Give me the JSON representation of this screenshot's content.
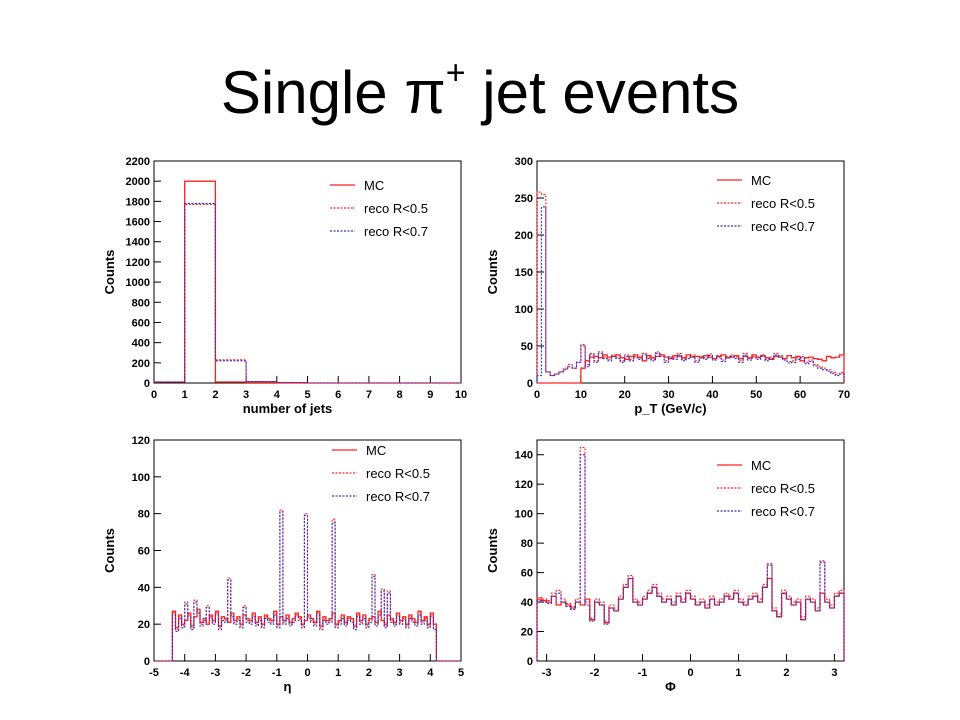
{
  "title": {
    "main": "Single π",
    "superscript": "+",
    "suffix": " jet events"
  },
  "colors": {
    "mc": "#ff2020",
    "r05": "#ff2020",
    "r07": "#3030c8"
  },
  "chart_data": [
    {
      "type": "step",
      "xlabel": "number of jets",
      "ylabel": "Counts",
      "xlim": [
        0,
        10
      ],
      "ylim": [
        0,
        2200
      ],
      "xticks": [
        0,
        1,
        2,
        3,
        4,
        5,
        6,
        7,
        8,
        9,
        10
      ],
      "yticks": [
        0,
        200,
        400,
        600,
        800,
        1000,
        1200,
        1400,
        1600,
        1800,
        2000,
        2200
      ],
      "legend": [
        "MC",
        "reco R<0.5",
        "reco R<0.7"
      ],
      "bin_edges": [
        0,
        1,
        2,
        3,
        4,
        5,
        6,
        7,
        8,
        9,
        10
      ],
      "series": [
        {
          "name": "MC",
          "style": "solid",
          "values": [
            10,
            2000,
            10,
            5,
            0,
            0,
            0,
            0,
            0,
            0
          ]
        },
        {
          "name": "reco R<0.5",
          "style": "dotted",
          "values": [
            10,
            1770,
            230,
            15,
            5,
            0,
            0,
            0,
            0,
            0
          ]
        },
        {
          "name": "reco R<0.7",
          "style": "dotted",
          "values": [
            10,
            1780,
            220,
            15,
            5,
            0,
            0,
            0,
            0,
            0
          ]
        }
      ]
    },
    {
      "type": "step",
      "xlabel": "p_T (GeV/c)",
      "ylabel": "Counts",
      "xlim": [
        0,
        70
      ],
      "ylim": [
        0,
        300
      ],
      "xticks": [
        0,
        10,
        20,
        30,
        40,
        50,
        60,
        70
      ],
      "yticks": [
        0,
        50,
        100,
        150,
        200,
        250,
        300
      ],
      "legend": [
        "MC",
        "reco R<0.5",
        "reco R<0.7"
      ],
      "bin_width": 1,
      "series": [
        {
          "name": "MC",
          "style": "solid",
          "values": [
            0,
            0,
            0,
            0,
            0,
            0,
            0,
            0,
            0,
            0,
            20,
            30,
            35,
            36,
            34,
            38,
            35,
            36,
            38,
            34,
            32,
            36,
            38,
            35,
            30,
            37,
            34,
            36,
            38,
            35,
            33,
            37,
            36,
            34,
            38,
            35,
            36,
            34,
            37,
            35,
            33,
            36,
            38,
            34,
            35,
            37,
            33,
            36,
            34,
            38,
            35,
            37,
            34,
            32,
            36,
            35,
            33,
            37,
            34,
            36,
            30,
            34,
            35,
            33,
            32,
            30,
            36,
            34,
            35,
            38
          ]
        },
        {
          "name": "reco R<0.5",
          "style": "dotted",
          "values": [
            258,
            255,
            15,
            10,
            12,
            15,
            20,
            25,
            20,
            28,
            52,
            25,
            40,
            30,
            42,
            35,
            32,
            38,
            35,
            30,
            38,
            32,
            36,
            34,
            40,
            35,
            32,
            42,
            38,
            30,
            36,
            34,
            40,
            32,
            35,
            38,
            30,
            36,
            34,
            39,
            33,
            37,
            31,
            36,
            38,
            35,
            30,
            40,
            33,
            36,
            34,
            38,
            32,
            35,
            40,
            37,
            33,
            29,
            30,
            34,
            36,
            28,
            31,
            25,
            22,
            20,
            18,
            15,
            12,
            14
          ]
        },
        {
          "name": "reco R<0.7",
          "style": "dotted",
          "values": [
            10,
            238,
            15,
            10,
            12,
            15,
            18,
            22,
            20,
            28,
            50,
            22,
            38,
            28,
            40,
            33,
            30,
            36,
            33,
            28,
            36,
            30,
            34,
            32,
            38,
            33,
            30,
            40,
            36,
            28,
            34,
            32,
            38,
            30,
            33,
            36,
            28,
            34,
            32,
            37,
            31,
            35,
            29,
            34,
            36,
            33,
            28,
            38,
            31,
            34,
            32,
            36,
            30,
            33,
            38,
            35,
            31,
            27,
            28,
            32,
            34,
            26,
            29,
            23,
            20,
            18,
            16,
            13,
            10,
            12
          ]
        }
      ]
    },
    {
      "type": "step",
      "xlabel": "η",
      "ylabel": "Counts",
      "xlim": [
        -5,
        5
      ],
      "ylim": [
        0,
        120
      ],
      "xticks": [
        -5,
        -4,
        -3,
        -2,
        -1,
        0,
        1,
        2,
        3,
        4,
        5
      ],
      "yticks": [
        0,
        20,
        40,
        60,
        80,
        100,
        120
      ],
      "legend": [
        "MC",
        "reco R<0.5",
        "reco R<0.7"
      ],
      "bin_width": 0.1,
      "series": [
        {
          "name": "MC",
          "style": "solid",
          "values": [
            0,
            0,
            0,
            0,
            0,
            0,
            27,
            18,
            25,
            20,
            22,
            26,
            19,
            24,
            28,
            21,
            23,
            20,
            25,
            22,
            27,
            19,
            24,
            23,
            21,
            26,
            22,
            24,
            20,
            25,
            23,
            22,
            26,
            21,
            24,
            20,
            25,
            23,
            22,
            27,
            20,
            24,
            22,
            25,
            21,
            23,
            26,
            24,
            20,
            22,
            25,
            23,
            21,
            27,
            19,
            24,
            22,
            23,
            26,
            20,
            22,
            25,
            21,
            24,
            23,
            19,
            26,
            22,
            25,
            20,
            23,
            24,
            21,
            27,
            22,
            20,
            25,
            23,
            21,
            26,
            22,
            24,
            20,
            25,
            23,
            21,
            27,
            22,
            24,
            20,
            26,
            20,
            0,
            0,
            0,
            0,
            0,
            0,
            0,
            0
          ]
        },
        {
          "name": "reco R<0.5",
          "style": "dotted",
          "values": [
            0,
            0,
            0,
            0,
            0,
            0,
            26,
            17,
            24,
            19,
            32,
            25,
            18,
            33,
            27,
            20,
            22,
            30,
            24,
            21,
            26,
            18,
            23,
            22,
            45,
            25,
            21,
            23,
            19,
            30,
            22,
            21,
            25,
            20,
            23,
            19,
            24,
            22,
            21,
            26,
            19,
            82,
            21,
            24,
            20,
            22,
            25,
            23,
            19,
            80,
            24,
            22,
            20,
            26,
            18,
            23,
            21,
            22,
            77,
            19,
            21,
            24,
            20,
            23,
            22,
            18,
            25,
            21,
            24,
            19,
            22,
            47,
            20,
            26,
            39,
            19,
            38,
            22,
            20,
            25,
            21,
            23,
            19,
            24,
            22,
            20,
            26,
            21,
            23,
            19,
            25,
            18,
            0,
            0,
            0,
            0,
            0,
            0,
            0,
            0
          ]
        },
        {
          "name": "reco R<0.7",
          "style": "dotted",
          "values": [
            0,
            0,
            0,
            0,
            0,
            0,
            25,
            16,
            23,
            18,
            31,
            24,
            17,
            32,
            26,
            19,
            21,
            29,
            23,
            20,
            25,
            17,
            22,
            21,
            44,
            24,
            20,
            22,
            18,
            29,
            21,
            20,
            24,
            19,
            22,
            18,
            23,
            21,
            20,
            25,
            18,
            81,
            20,
            23,
            19,
            21,
            24,
            22,
            18,
            79,
            23,
            21,
            19,
            25,
            17,
            22,
            20,
            21,
            75,
            18,
            20,
            23,
            19,
            22,
            21,
            17,
            24,
            20,
            23,
            18,
            21,
            46,
            19,
            25,
            38,
            18,
            37,
            21,
            19,
            24,
            20,
            22,
            18,
            23,
            21,
            19,
            25,
            20,
            22,
            18,
            24,
            17,
            0,
            0,
            0,
            0,
            0,
            0,
            0,
            0
          ]
        }
      ]
    },
    {
      "type": "step",
      "xlabel": "Φ",
      "ylabel": "Counts",
      "xlim": [
        -3.2,
        3.2
      ],
      "ylim": [
        0,
        150
      ],
      "xticks": [
        -3,
        -2,
        -1,
        0,
        1,
        2,
        3
      ],
      "yticks": [
        0,
        20,
        40,
        60,
        80,
        100,
        120,
        140
      ],
      "legend": [
        "MC",
        "reco R<0.5",
        "reco R<0.7"
      ],
      "bin_width": 0.1,
      "series": [
        {
          "name": "MC",
          "style": "solid",
          "values": [
            42,
            41,
            40,
            44,
            38,
            40,
            38,
            36,
            40,
            38,
            42,
            28,
            40,
            38,
            26,
            36,
            34,
            42,
            50,
            56,
            40,
            38,
            42,
            46,
            50,
            44,
            40,
            42,
            38,
            44,
            40,
            46,
            42,
            38,
            40,
            36,
            42,
            38,
            40,
            44,
            42,
            46,
            40,
            38,
            42,
            44,
            40,
            50,
            56,
            34,
            30,
            46,
            42,
            38,
            40,
            28,
            42,
            40,
            34,
            46,
            40,
            36,
            44,
            46
          ]
        },
        {
          "name": "reco R<0.5",
          "style": "dotted",
          "values": [
            43,
            42,
            41,
            46,
            48,
            42,
            39,
            37,
            42,
            145,
            40,
            29,
            42,
            40,
            27,
            38,
            36,
            44,
            52,
            58,
            42,
            40,
            44,
            48,
            52,
            46,
            42,
            44,
            40,
            46,
            42,
            48,
            44,
            40,
            42,
            38,
            44,
            40,
            42,
            46,
            44,
            48,
            42,
            40,
            44,
            46,
            42,
            52,
            66,
            36,
            32,
            48,
            44,
            40,
            42,
            30,
            44,
            42,
            36,
            68,
            42,
            38,
            46,
            48
          ]
        },
        {
          "name": "reco R<0.7",
          "style": "dotted",
          "values": [
            41,
            40,
            39,
            44,
            46,
            40,
            37,
            35,
            40,
            140,
            38,
            27,
            40,
            38,
            25,
            36,
            34,
            42,
            50,
            56,
            40,
            38,
            42,
            46,
            50,
            44,
            40,
            42,
            38,
            44,
            40,
            46,
            42,
            38,
            40,
            36,
            42,
            38,
            40,
            44,
            42,
            46,
            40,
            38,
            42,
            44,
            40,
            50,
            65,
            34,
            30,
            46,
            42,
            38,
            40,
            28,
            42,
            40,
            34,
            67,
            40,
            36,
            44,
            46
          ]
        }
      ]
    }
  ]
}
